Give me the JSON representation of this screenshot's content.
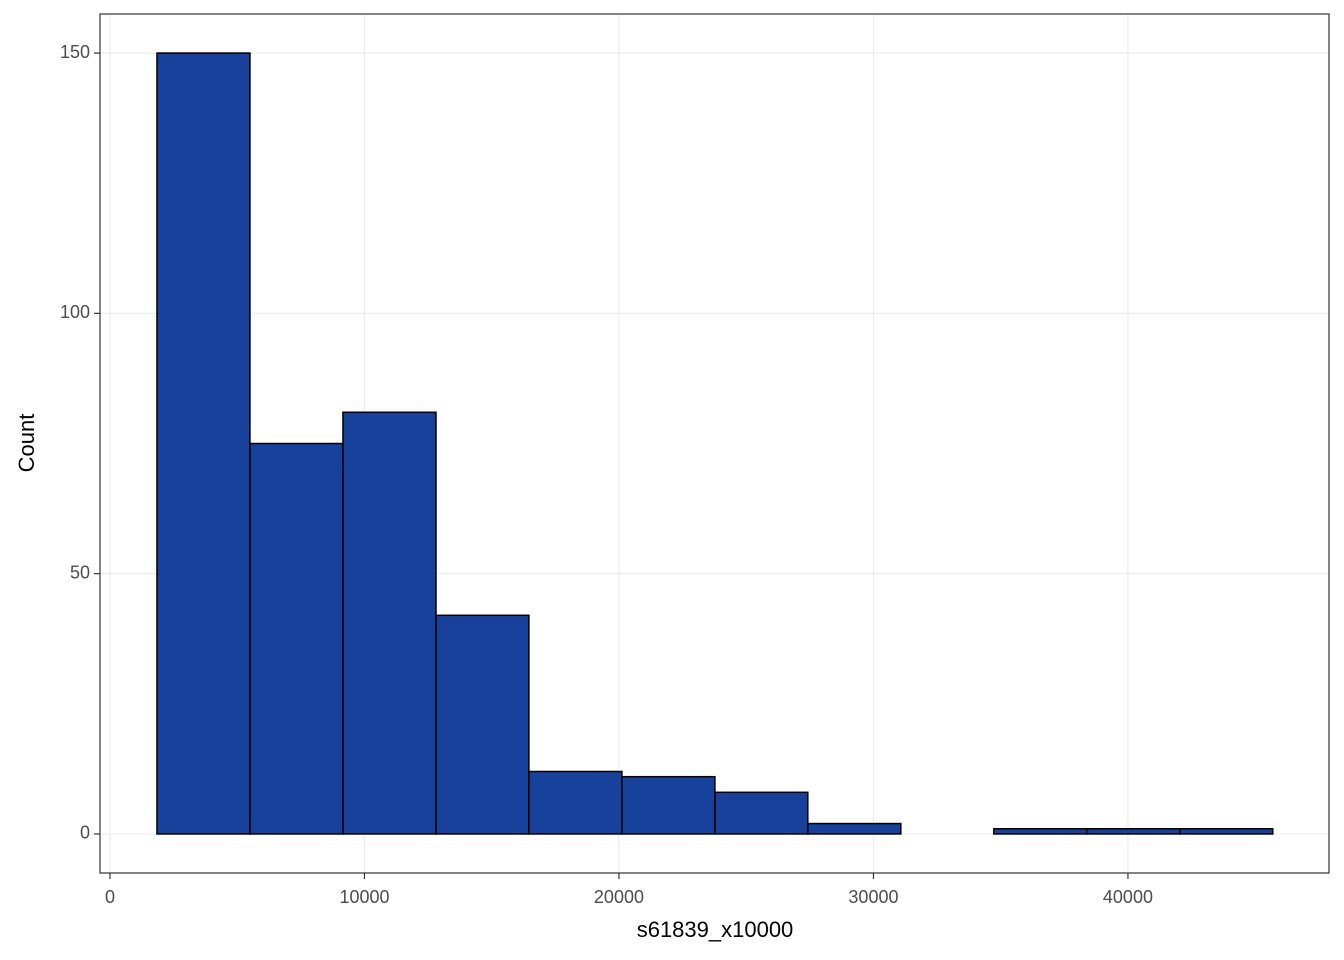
{
  "chart_data": {
    "type": "histogram",
    "bins": [
      1847,
      5500,
      9155,
      12810,
      16460,
      20115,
      23770,
      27420,
      31075,
      34730,
      38380,
      42035,
      45690
    ],
    "values": [
      150,
      75,
      81,
      42,
      12,
      11,
      8,
      2,
      0,
      1,
      1,
      1
    ],
    "color": "#17419a",
    "xlabel": "s61839_x10000",
    "ylabel": "Count",
    "xlim": [
      -392,
      47900
    ],
    "ylim": [
      -7.5,
      157.5
    ],
    "xticks": [
      0,
      10000,
      20000,
      30000,
      40000
    ],
    "yticks": [
      0,
      50,
      100,
      150
    ],
    "grid": true
  }
}
